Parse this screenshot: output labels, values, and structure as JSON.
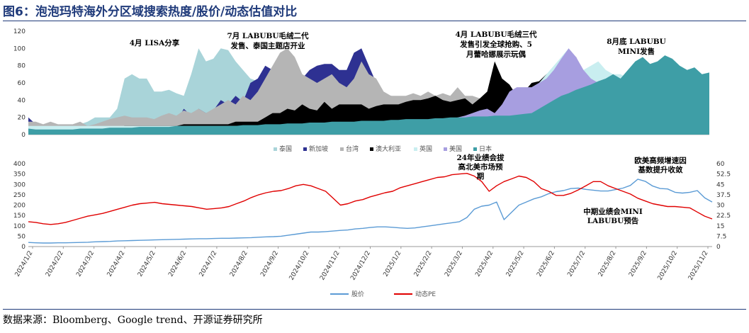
{
  "figure": {
    "title": "图6：泡泡玛特海外分区域搜索热度/股价/动态估值对比",
    "source": "数据来源：Bloomberg、Google trend、开源证券研究所"
  },
  "chart_data": [
    {
      "type": "area",
      "ylim": [
        0,
        120
      ],
      "yticks": [
        0,
        20,
        40,
        60,
        80,
        100,
        120
      ],
      "x_start": "2024-01-07",
      "x_step_days": 7,
      "legend_placement": "bottom",
      "series": [
        {
          "name": "泰国",
          "color": "#a9d4d9",
          "values": [
            5,
            5,
            5,
            5,
            5,
            8,
            10,
            12,
            15,
            20,
            20,
            20,
            30,
            65,
            70,
            65,
            65,
            50,
            50,
            52,
            48,
            45,
            70,
            100,
            85,
            88,
            100,
            98,
            85,
            75,
            65,
            62,
            30,
            20,
            15,
            15,
            10,
            10,
            5,
            5,
            5,
            5,
            5,
            5,
            5,
            5,
            5,
            5,
            5,
            5,
            5,
            5,
            5,
            5,
            5,
            5,
            5,
            5,
            5,
            5,
            5,
            5,
            5,
            5,
            5,
            5,
            5,
            5,
            5,
            5,
            5,
            5,
            5,
            5,
            5,
            5,
            5,
            5,
            5,
            5,
            5,
            5,
            5,
            5,
            5,
            5,
            5,
            5,
            5,
            5,
            5,
            5,
            5
          ]
        },
        {
          "name": "新加坡",
          "color": "#2e3192",
          "values": [
            20,
            12,
            10,
            12,
            10,
            10,
            8,
            12,
            10,
            10,
            12,
            10,
            12,
            15,
            12,
            18,
            15,
            12,
            15,
            12,
            15,
            30,
            22,
            30,
            25,
            28,
            40,
            35,
            45,
            38,
            60,
            65,
            80,
            75,
            88,
            68,
            72,
            65,
            75,
            80,
            82,
            82,
            75,
            75,
            95,
            100,
            80,
            60,
            45,
            45,
            42,
            40,
            38,
            35,
            35,
            32,
            30,
            30,
            30,
            28,
            28,
            25,
            25,
            25,
            25,
            25,
            28,
            25,
            20,
            15,
            15,
            15,
            15,
            15,
            15,
            15,
            15,
            15,
            15,
            15,
            15,
            15,
            15,
            15,
            15,
            15,
            15,
            15,
            15,
            15,
            15,
            15,
            15
          ]
        },
        {
          "name": "台湾",
          "color": "#b5b5b5",
          "values": [
            15,
            15,
            12,
            15,
            12,
            12,
            12,
            15,
            10,
            12,
            15,
            18,
            20,
            22,
            20,
            20,
            20,
            18,
            22,
            25,
            22,
            28,
            25,
            30,
            25,
            30,
            35,
            40,
            35,
            45,
            40,
            50,
            65,
            80,
            95,
            100,
            90,
            70,
            65,
            60,
            65,
            70,
            60,
            55,
            65,
            85,
            70,
            65,
            50,
            45,
            45,
            45,
            48,
            45,
            50,
            45,
            48,
            45,
            55,
            45,
            45,
            42,
            40,
            40,
            35,
            35,
            30,
            30,
            28,
            25,
            25,
            25,
            25,
            25,
            25,
            25,
            25,
            25,
            25,
            25,
            25,
            25,
            25,
            25,
            25,
            25,
            25,
            25,
            25,
            25,
            25,
            25,
            25
          ]
        },
        {
          "name": "澳大利亚",
          "color": "#000000",
          "values": [
            8,
            8,
            8,
            8,
            8,
            8,
            8,
            8,
            8,
            8,
            8,
            8,
            8,
            10,
            10,
            10,
            10,
            10,
            10,
            10,
            10,
            12,
            12,
            12,
            12,
            12,
            12,
            12,
            15,
            15,
            15,
            15,
            20,
            25,
            25,
            30,
            28,
            35,
            30,
            28,
            38,
            30,
            35,
            35,
            35,
            35,
            30,
            33,
            35,
            35,
            35,
            38,
            40,
            40,
            42,
            45,
            40,
            38,
            40,
            42,
            35,
            42,
            50,
            85,
            65,
            58,
            45,
            50,
            60,
            62,
            70,
            75,
            78,
            80,
            90,
            72,
            65,
            70,
            70,
            68,
            65,
            65,
            60,
            60,
            55,
            55,
            55,
            55,
            55,
            55,
            55,
            55,
            55
          ]
        },
        {
          "name": "英国",
          "color": "#c9eef0",
          "values": [
            10,
            10,
            10,
            10,
            10,
            10,
            10,
            10,
            10,
            10,
            10,
            10,
            10,
            10,
            10,
            10,
            10,
            10,
            10,
            10,
            10,
            10,
            10,
            10,
            10,
            10,
            10,
            10,
            10,
            10,
            10,
            10,
            10,
            10,
            10,
            10,
            10,
            10,
            10,
            10,
            10,
            10,
            10,
            10,
            10,
            10,
            10,
            10,
            10,
            10,
            10,
            10,
            10,
            10,
            10,
            10,
            10,
            10,
            10,
            10,
            10,
            10,
            10,
            10,
            10,
            10,
            40,
            45,
            55,
            60,
            70,
            80,
            90,
            100,
            85,
            75,
            80,
            85,
            75,
            70,
            70,
            65,
            60,
            55,
            50,
            45,
            40,
            40,
            40,
            40,
            40,
            40,
            40
          ]
        },
        {
          "name": "美国",
          "color": "#a79ee0",
          "values": [
            5,
            5,
            5,
            5,
            5,
            5,
            5,
            5,
            5,
            5,
            5,
            5,
            5,
            5,
            5,
            5,
            5,
            5,
            5,
            5,
            5,
            5,
            5,
            5,
            5,
            5,
            5,
            5,
            5,
            5,
            5,
            5,
            5,
            5,
            5,
            5,
            5,
            5,
            5,
            5,
            5,
            5,
            5,
            5,
            5,
            5,
            5,
            5,
            5,
            5,
            5,
            5,
            5,
            5,
            5,
            5,
            15,
            18,
            20,
            22,
            25,
            28,
            30,
            25,
            35,
            50,
            55,
            55,
            55,
            60,
            65,
            75,
            88,
            100,
            90,
            75,
            65,
            60,
            55,
            50,
            45,
            40,
            35,
            30,
            30,
            30,
            30,
            30,
            30,
            30,
            30,
            30,
            30
          ]
        },
        {
          "name": "日本",
          "color": "#3e9ea6",
          "values": [
            7,
            6,
            6,
            6,
            6,
            6,
            6,
            7,
            7,
            7,
            7,
            8,
            8,
            8,
            8,
            9,
            9,
            9,
            9,
            9,
            10,
            10,
            10,
            10,
            10,
            10,
            10,
            10,
            10,
            11,
            11,
            11,
            12,
            12,
            12,
            13,
            13,
            13,
            14,
            14,
            14,
            15,
            15,
            15,
            15,
            16,
            16,
            16,
            16,
            17,
            17,
            18,
            18,
            18,
            18,
            19,
            19,
            20,
            20,
            20,
            21,
            21,
            21,
            22,
            22,
            22,
            23,
            24,
            25,
            30,
            35,
            40,
            45,
            48,
            52,
            55,
            58,
            62,
            65,
            70,
            65,
            75,
            85,
            90,
            82,
            85,
            92,
            88,
            80,
            75,
            78,
            70,
            72
          ]
        }
      ],
      "annotations": [
        {
          "lines": [
            "4月 LISA分享"
          ]
        },
        {
          "lines": [
            "7月 LABUBU毛绒二代",
            "发售、泰国主题店开业"
          ]
        },
        {
          "lines": [
            "4月 LABUBU毛绒三代",
            "发售引发全球抢购、5",
            "月蕾哈娜展示玩偶"
          ]
        },
        {
          "lines": [
            "8月底 LABUBU",
            "MINI发售"
          ]
        }
      ]
    },
    {
      "type": "line",
      "x_start": "2024-01-02",
      "x_step_days": 7,
      "ylim_left": [
        0,
        400
      ],
      "yticks_left": [
        0,
        50,
        100,
        150,
        200,
        250,
        300,
        350,
        400
      ],
      "ylim_right": [
        0,
        60
      ],
      "yticks_right": [
        "0",
        "7.5",
        "15",
        "22.5",
        "30",
        "37.5",
        "45",
        "52.5",
        "60"
      ],
      "x_tick_labels": [
        "2024/1/2",
        "2024/2/2",
        "2024/3/2",
        "2024/4/2",
        "2024/5/2",
        "2024/6/2",
        "2024/7/2",
        "2024/8/2",
        "2024/9/2",
        "2024/10/2",
        "2024/11/2",
        "2024/12/2",
        "2025/1/2",
        "2025/2/2",
        "2025/3/2",
        "2025/4/2",
        "2025/5/2",
        "2025/6/2",
        "2025/7/2",
        "2025/8/2",
        "2025/9/2",
        "2025/10/2",
        "2025/11/2"
      ],
      "legend_placement": "bottom",
      "series": [
        {
          "name": "股价",
          "axis": "left",
          "color": "#5b9bd5",
          "values": [
            20,
            18,
            17,
            17,
            18,
            18,
            19,
            20,
            21,
            23,
            24,
            25,
            27,
            28,
            29,
            30,
            31,
            32,
            33,
            34,
            35,
            36,
            37,
            38,
            38,
            39,
            40,
            40,
            41,
            42,
            43,
            45,
            47,
            48,
            50,
            55,
            60,
            65,
            70,
            70,
            72,
            75,
            78,
            80,
            85,
            88,
            92,
            95,
            95,
            93,
            90,
            88,
            90,
            95,
            100,
            105,
            110,
            115,
            120,
            140,
            180,
            195,
            200,
            215,
            130,
            165,
            200,
            215,
            230,
            240,
            255,
            265,
            270,
            280,
            282,
            276,
            272,
            268,
            268,
            275,
            282,
            295,
            325,
            315,
            292,
            280,
            278,
            262,
            258,
            262,
            270,
            235,
            215
          ]
        },
        {
          "name": "动态PE",
          "axis": "right",
          "color": "#e00000",
          "values": [
            18,
            17.5,
            16.5,
            16,
            16.5,
            17.5,
            19,
            20.5,
            22,
            23,
            24,
            25.5,
            27,
            28.5,
            30,
            31,
            31.5,
            32,
            31,
            30.5,
            30,
            29.5,
            29,
            28,
            27,
            27.5,
            28,
            29,
            31,
            33,
            35.5,
            37.5,
            39,
            40,
            40.5,
            42,
            44,
            45,
            44,
            42,
            40,
            35,
            30,
            31,
            33,
            34,
            36,
            37.5,
            39,
            40,
            42.5,
            44,
            45.5,
            47,
            48.5,
            50,
            50.5,
            52,
            52.5,
            53,
            51,
            47,
            40,
            44,
            47,
            49,
            51,
            50,
            47,
            42,
            40,
            37,
            37,
            38.5,
            41,
            44,
            47,
            47,
            44,
            42,
            40,
            38,
            35,
            33,
            31,
            30,
            29,
            29,
            28.5,
            28,
            25,
            22,
            20
          ]
        }
      ],
      "annotations": [
        {
          "lines": [
            "24年业绩会拔",
            "高北美市场预",
            "期"
          ]
        },
        {
          "lines": [
            "欧美高频增速因",
            "基数提升收敛"
          ]
        },
        {
          "lines": [
            "中期业绩会MINI",
            "LABUBU预告"
          ]
        }
      ]
    }
  ]
}
